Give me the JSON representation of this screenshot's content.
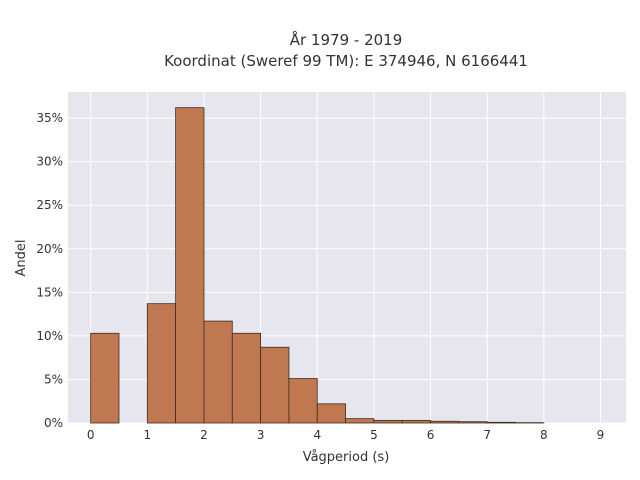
{
  "chart_data": {
    "type": "bar",
    "title": "År 1979 - 2019",
    "subtitle": "Koordinat (Sweref 99 TM): E 374946, N 6166441",
    "xlabel": "Vågperiod (s)",
    "ylabel": "Andel",
    "xlim": [
      -0.4,
      9.45
    ],
    "ylim": [
      0,
      0.38
    ],
    "x_ticks": [
      0,
      1,
      2,
      3,
      4,
      5,
      6,
      7,
      8,
      9
    ],
    "y_ticks": [
      0,
      0.05,
      0.1,
      0.15,
      0.2,
      0.25,
      0.3,
      0.35
    ],
    "y_tick_labels": [
      "0%",
      "5%",
      "10%",
      "15%",
      "20%",
      "25%",
      "30%",
      "35%"
    ],
    "bin_width": 0.5,
    "bin_starts": [
      0,
      0.5,
      1.0,
      1.5,
      2.0,
      2.5,
      3.0,
      3.5,
      4.0,
      4.5,
      5.0,
      5.5,
      6.0,
      6.5,
      7.0,
      7.5
    ],
    "values": [
      0.103,
      0,
      0.137,
      0.362,
      0.117,
      0.103,
      0.087,
      0.051,
      0.022,
      0.005,
      0.003,
      0.003,
      0.002,
      0.0015,
      0.0008,
      0.0004
    ],
    "grid": true,
    "legend": "none",
    "colors": {
      "bar_fill": "#c07850",
      "bar_edge": "#3d2b1f",
      "plot_bg": "#e6e6ef",
      "grid": "#ffffff",
      "text": "#333333"
    }
  }
}
